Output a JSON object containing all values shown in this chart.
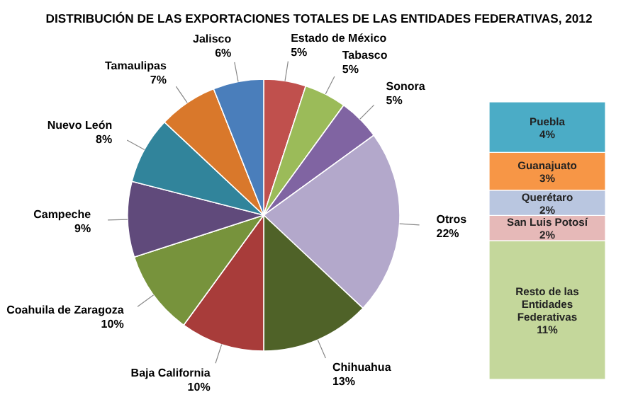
{
  "chart_data": [
    {
      "type": "pie",
      "title": "DISTRIBUCIÓN DE LAS EXPORTACIONES TOTALES DE LAS ENTIDADES FEDERATIVAS, 2012",
      "categories": [
        "Estado de México",
        "Tabasco",
        "Sonora",
        "Otros",
        "Chihuahua",
        "Baja California",
        "Coahuila de Zaragoza",
        "Campeche",
        "Nuevo León",
        "Tamaulipas",
        "Jalisco"
      ],
      "values": [
        5,
        5,
        5,
        22,
        13,
        10,
        10,
        9,
        8,
        7,
        6
      ],
      "colors": [
        "#c0504d",
        "#9bbb59",
        "#8064a2",
        "#b3a8cb",
        "#4f6228",
        "#a83c3a",
        "#77933c",
        "#604a7b",
        "#31849b",
        "#d9782b",
        "#4a7ebb"
      ],
      "value_labels": [
        "5%",
        "5%",
        "5%",
        "22%",
        "13%",
        "10%",
        "10%",
        "9%",
        "8%",
        "7%",
        "6%"
      ]
    },
    {
      "type": "bar",
      "stacked": true,
      "categories": [
        null
      ],
      "series": [
        {
          "name": "Resto de las Entidades Federativas",
          "color": "#c4d79b",
          "values": [
            11
          ],
          "value_labels": [
            "11%"
          ]
        },
        {
          "name": "San Luis Potosí",
          "color": "#e6b9b8",
          "values": [
            2
          ],
          "value_labels": [
            "2%"
          ]
        },
        {
          "name": "Querétaro",
          "color": "#b9c6e0",
          "values": [
            2
          ],
          "value_labels": [
            "2%"
          ]
        },
        {
          "name": "Guanajuato",
          "color": "#f79646",
          "values": [
            3
          ],
          "value_labels": [
            "3%"
          ]
        },
        {
          "name": "Puebla",
          "color": "#4bacc6",
          "values": [
            4
          ],
          "value_labels": [
            "4%"
          ]
        }
      ]
    }
  ]
}
